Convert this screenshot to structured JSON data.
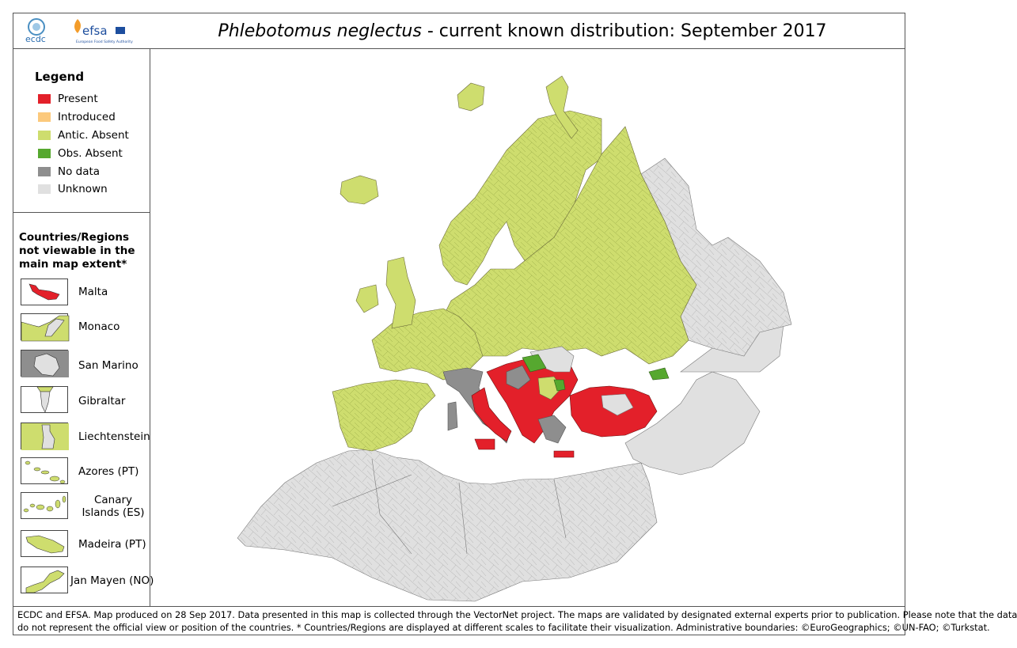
{
  "header": {
    "species": "Phlebotomus neglectus",
    "title_rest": " - current known distribution: September 2017",
    "logos": {
      "ecdc": "ecdc",
      "efsa": "efsa",
      "efsa_sub": "European Food Safety Authority"
    }
  },
  "legend": {
    "title": "Legend",
    "items": [
      {
        "label": "Present",
        "color": "#e3202a"
      },
      {
        "label": "Introduced",
        "color": "#fcc97c"
      },
      {
        "label": "Antic. Absent",
        "color": "#cedd6e"
      },
      {
        "label": "Obs. Absent",
        "color": "#56a82f"
      },
      {
        "label": "No data",
        "color": "#8e8e8e"
      },
      {
        "label": "Unknown",
        "color": "#e0e0e0"
      }
    ]
  },
  "insets": {
    "title": "Countries/Regions not viewable in the main map extent*",
    "items": [
      {
        "label": "Malta"
      },
      {
        "label": "Monaco"
      },
      {
        "label": "San Marino"
      },
      {
        "label": "Gibraltar"
      },
      {
        "label": "Liechtenstein"
      },
      {
        "label": "Azores (PT)"
      },
      {
        "label": "Canary Islands (ES)"
      },
      {
        "label": "Madeira (PT)"
      },
      {
        "label": "Jan Mayen (NO)"
      }
    ]
  },
  "footer": {
    "line1": "ECDC and EFSA. Map produced on 28 Sep 2017. Data presented in this map is collected through the VectorNet project. The maps are validated by designated external experts prior to publication. Please note that the data",
    "line2": "do not represent the official view or position of the countries. * Countries/Regions are displayed at different scales to facilitate their visualization. Administrative boundaries: ©EuroGeographics; ©UN-FAO; ©Turkstat."
  },
  "map_colors": {
    "present": "#e3202a",
    "antic_absent": "#cedd6e",
    "obs_absent": "#56a82f",
    "no_data": "#8e8e8e",
    "unknown": "#e0e0e0",
    "border": "#6b6b3a"
  }
}
